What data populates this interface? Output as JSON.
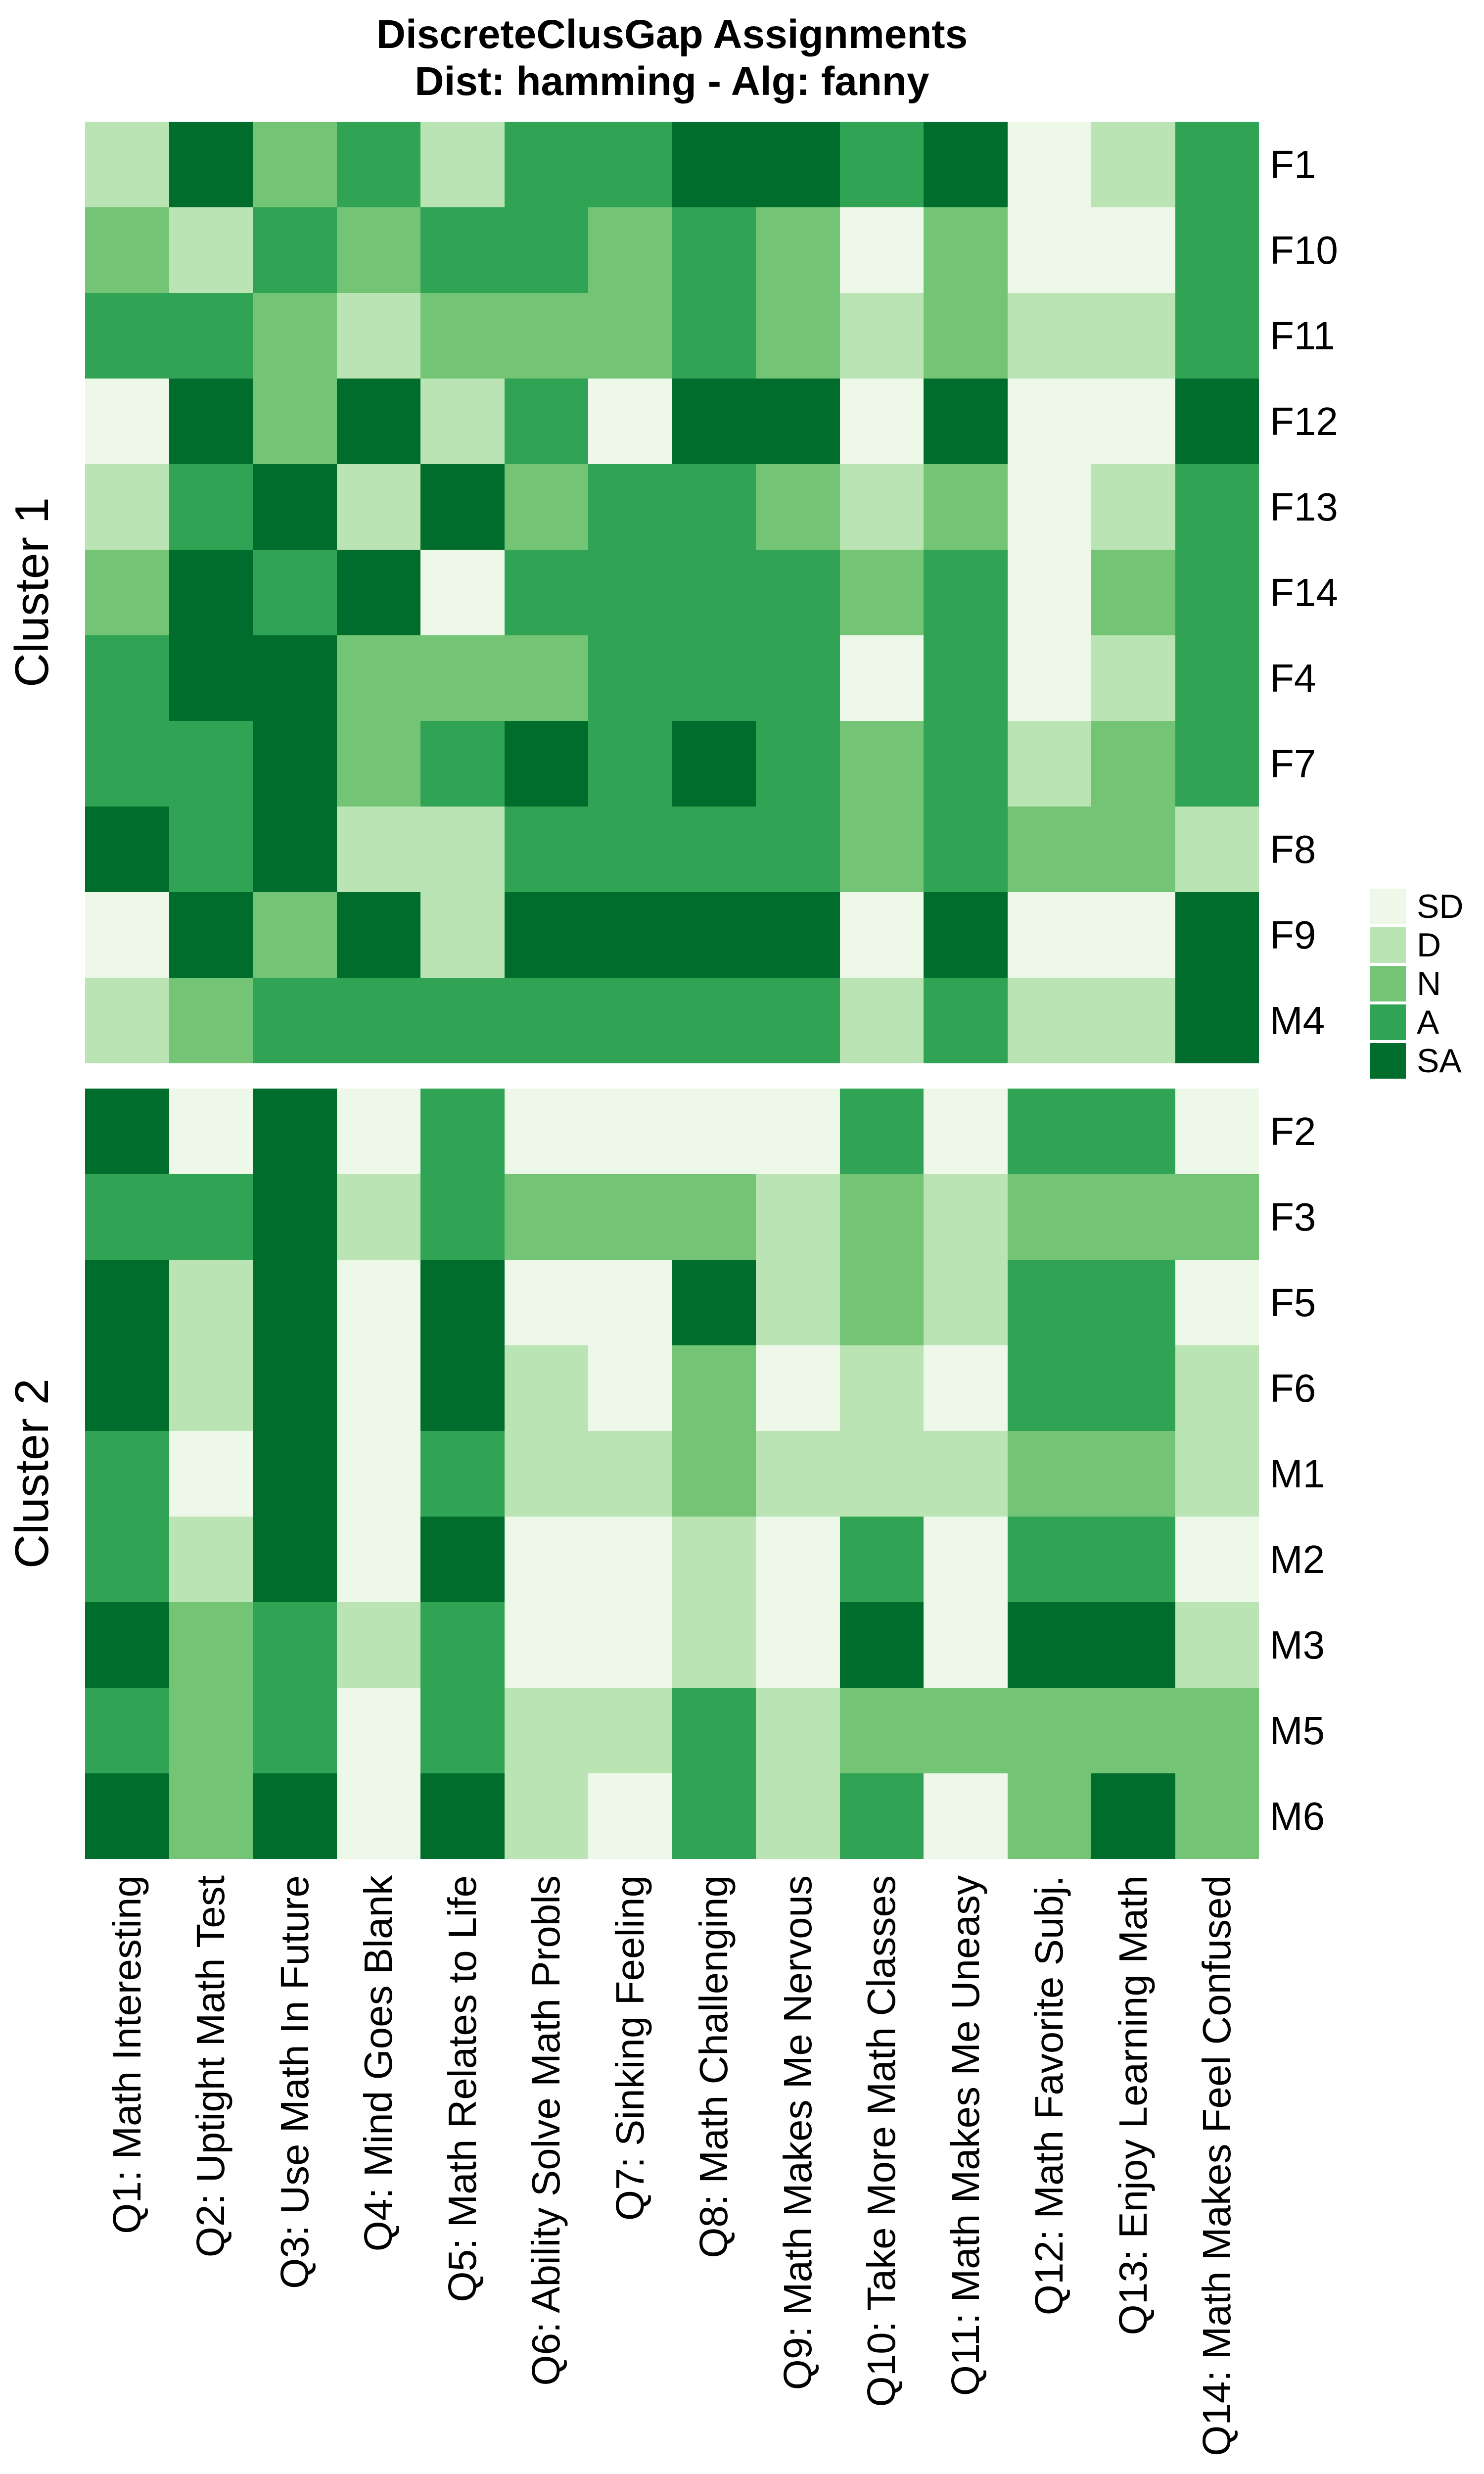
{
  "title": {
    "line1": "DiscreteClusGap Assignments",
    "line2": "Dist: hamming - Alg: fanny"
  },
  "legend": {
    "items": [
      {
        "label": "SD",
        "color": "#EDF8E9"
      },
      {
        "label": "D",
        "color": "#BAE4B3"
      },
      {
        "label": "N",
        "color": "#74C476"
      },
      {
        "label": "A",
        "color": "#31A354"
      },
      {
        "label": "SA",
        "color": "#006D2C"
      }
    ]
  },
  "chart_data": {
    "type": "heatmap",
    "title": "DiscreteClusGap Assignments",
    "subtitle": "Dist: hamming - Alg: fanny",
    "value_levels": [
      "SD",
      "D",
      "N",
      "A",
      "SA"
    ],
    "level_colors": {
      "SD": "#EDF8E9",
      "D": "#BAE4B3",
      "N": "#74C476",
      "A": "#31A354",
      "SA": "#006D2C"
    },
    "x_categories": [
      "Q1: Math Interesting",
      "Q2: Uptight Math Test",
      "Q3: Use Math In Future",
      "Q4: Mind Goes Blank",
      "Q5: Math Relates to Life",
      "Q6: Ability Solve Math Probls",
      "Q7: Sinking Feeling",
      "Q8: Math Challenging",
      "Q9: Math Makes Me Nervous",
      "Q10: Take More Math Classes",
      "Q11: Math Makes Me Uneasy",
      "Q12: Math Favorite Subj.",
      "Q13: Enjoy Learning Math",
      "Q14: Math Makes Feel Confused"
    ],
    "clusters": [
      {
        "name": "Cluster 1",
        "rows": [
          {
            "label": "F1",
            "values": [
              "D",
              "SA",
              "N",
              "A",
              "D",
              "A",
              "A",
              "SA",
              "SA",
              "A",
              "SA",
              "SD",
              "D",
              "A"
            ]
          },
          {
            "label": "F10",
            "values": [
              "N",
              "D",
              "A",
              "N",
              "A",
              "A",
              "N",
              "A",
              "N",
              "SD",
              "N",
              "SD",
              "SD",
              "A"
            ]
          },
          {
            "label": "F11",
            "values": [
              "A",
              "A",
              "N",
              "D",
              "N",
              "N",
              "N",
              "A",
              "N",
              "D",
              "N",
              "D",
              "D",
              "A"
            ]
          },
          {
            "label": "F12",
            "values": [
              "SD",
              "SA",
              "N",
              "SA",
              "D",
              "A",
              "SD",
              "SA",
              "SA",
              "SD",
              "SA",
              "SD",
              "SD",
              "SA"
            ]
          },
          {
            "label": "F13",
            "values": [
              "D",
              "A",
              "SA",
              "D",
              "SA",
              "N",
              "A",
              "A",
              "N",
              "D",
              "N",
              "SD",
              "D",
              "A"
            ]
          },
          {
            "label": "F14",
            "values": [
              "N",
              "SA",
              "A",
              "SA",
              "SD",
              "A",
              "A",
              "A",
              "A",
              "N",
              "A",
              "SD",
              "N",
              "A"
            ]
          },
          {
            "label": "F4",
            "values": [
              "A",
              "SA",
              "SA",
              "N",
              "N",
              "N",
              "A",
              "A",
              "A",
              "SD",
              "A",
              "SD",
              "D",
              "A"
            ]
          },
          {
            "label": "F7",
            "values": [
              "A",
              "A",
              "SA",
              "N",
              "A",
              "SA",
              "A",
              "SA",
              "A",
              "N",
              "A",
              "D",
              "N",
              "A"
            ]
          },
          {
            "label": "F8",
            "values": [
              "SA",
              "A",
              "SA",
              "D",
              "D",
              "A",
              "A",
              "A",
              "A",
              "N",
              "A",
              "N",
              "N",
              "D"
            ]
          },
          {
            "label": "F9",
            "values": [
              "SD",
              "SA",
              "N",
              "SA",
              "D",
              "SA",
              "SA",
              "SA",
              "SA",
              "SD",
              "SA",
              "SD",
              "SD",
              "SA"
            ]
          },
          {
            "label": "M4",
            "values": [
              "D",
              "N",
              "A",
              "A",
              "A",
              "A",
              "A",
              "A",
              "A",
              "D",
              "A",
              "D",
              "D",
              "SA"
            ]
          }
        ]
      },
      {
        "name": "Cluster 2",
        "rows": [
          {
            "label": "F2",
            "values": [
              "SA",
              "SD",
              "SA",
              "SD",
              "A",
              "SD",
              "SD",
              "SD",
              "SD",
              "A",
              "SD",
              "A",
              "A",
              "SD"
            ]
          },
          {
            "label": "F3",
            "values": [
              "A",
              "A",
              "SA",
              "D",
              "A",
              "N",
              "N",
              "N",
              "D",
              "N",
              "D",
              "N",
              "N",
              "N"
            ]
          },
          {
            "label": "F5",
            "values": [
              "SA",
              "D",
              "SA",
              "SD",
              "SA",
              "SD",
              "SD",
              "SA",
              "D",
              "N",
              "D",
              "A",
              "A",
              "SD"
            ]
          },
          {
            "label": "F6",
            "values": [
              "SA",
              "D",
              "SA",
              "SD",
              "SA",
              "D",
              "SD",
              "N",
              "SD",
              "D",
              "SD",
              "A",
              "A",
              "D"
            ]
          },
          {
            "label": "M1",
            "values": [
              "A",
              "SD",
              "SA",
              "SD",
              "A",
              "D",
              "D",
              "N",
              "D",
              "D",
              "D",
              "N",
              "N",
              "D"
            ]
          },
          {
            "label": "M2",
            "values": [
              "A",
              "D",
              "SA",
              "SD",
              "SA",
              "SD",
              "SD",
              "D",
              "SD",
              "A",
              "SD",
              "A",
              "A",
              "SD"
            ]
          },
          {
            "label": "M3",
            "values": [
              "SA",
              "N",
              "A",
              "D",
              "A",
              "SD",
              "SD",
              "D",
              "SD",
              "SA",
              "SD",
              "SA",
              "SA",
              "D"
            ]
          },
          {
            "label": "M5",
            "values": [
              "A",
              "N",
              "A",
              "SD",
              "A",
              "D",
              "D",
              "A",
              "D",
              "N",
              "N",
              "N",
              "N",
              "N"
            ]
          },
          {
            "label": "M6",
            "values": [
              "SA",
              "N",
              "SA",
              "SD",
              "SA",
              "D",
              "SD",
              "A",
              "D",
              "A",
              "SD",
              "N",
              "SA",
              "N"
            ]
          }
        ]
      }
    ],
    "layout_hints": {
      "legend_position": "right-middle",
      "x_labels_rotated": true,
      "row_labels_side": "right",
      "cluster_labels_side": "left",
      "grid": "off"
    }
  }
}
